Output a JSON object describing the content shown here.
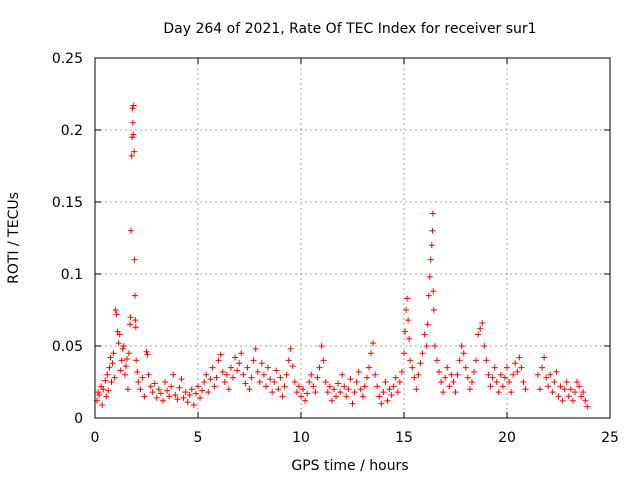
{
  "chart_data": {
    "type": "scatter",
    "title": "Day 264 of 2021, Rate Of TEC Index for receiver sur1",
    "xlabel": "GPS time / hours",
    "ylabel": "ROTI / TECUs",
    "xlim": [
      0,
      25
    ],
    "ylim": [
      0,
      0.25
    ],
    "xticks": [
      0,
      5,
      10,
      15,
      20,
      25
    ],
    "xtick_labels": [
      "0",
      "5",
      "10",
      "15",
      "20",
      "25"
    ],
    "yticks": [
      0,
      0.05,
      0.1,
      0.15,
      0.2,
      0.25
    ],
    "ytick_labels": [
      "0",
      "0.05",
      "0.1",
      "0.15",
      "0.2",
      "0.25"
    ],
    "grid": true,
    "marker": "+",
    "color": "#ff0000",
    "series": [
      {
        "name": "ROTI",
        "points": [
          [
            0.1,
            0.012
          ],
          [
            0.15,
            0.018
          ],
          [
            0.2,
            0.016
          ],
          [
            0.3,
            0.022
          ],
          [
            0.35,
            0.009
          ],
          [
            0.4,
            0.02
          ],
          [
            0.5,
            0.026
          ],
          [
            0.55,
            0.015
          ],
          [
            0.6,
            0.03
          ],
          [
            0.65,
            0.019
          ],
          [
            0.7,
            0.035
          ],
          [
            0.75,
            0.042
          ],
          [
            0.8,
            0.025
          ],
          [
            0.85,
            0.038
          ],
          [
            0.9,
            0.045
          ],
          [
            0.95,
            0.028
          ],
          [
            1.0,
            0.075
          ],
          [
            1.05,
            0.072
          ],
          [
            1.1,
            0.06
          ],
          [
            1.15,
            0.052
          ],
          [
            1.2,
            0.058
          ],
          [
            1.25,
            0.033
          ],
          [
            1.3,
            0.04
          ],
          [
            1.35,
            0.048
          ],
          [
            1.4,
            0.05
          ],
          [
            1.45,
            0.03
          ],
          [
            1.5,
            0.036
          ],
          [
            1.55,
            0.041
          ],
          [
            1.6,
            0.02
          ],
          [
            1.65,
            0.045
          ],
          [
            1.7,
            0.065
          ],
          [
            1.72,
            0.07
          ],
          [
            1.75,
            0.13
          ],
          [
            1.78,
            0.182
          ],
          [
            1.8,
            0.195
          ],
          [
            1.82,
            0.215
          ],
          [
            1.84,
            0.205
          ],
          [
            1.86,
            0.197
          ],
          [
            1.88,
            0.217
          ],
          [
            1.9,
            0.185
          ],
          [
            1.92,
            0.11
          ],
          [
            1.94,
            0.085
          ],
          [
            1.96,
            0.068
          ],
          [
            1.98,
            0.063
          ],
          [
            2.0,
            0.04
          ],
          [
            2.05,
            0.032
          ],
          [
            2.1,
            0.025
          ],
          [
            2.2,
            0.02
          ],
          [
            2.3,
            0.028
          ],
          [
            2.4,
            0.015
          ],
          [
            2.5,
            0.046
          ],
          [
            2.55,
            0.044
          ],
          [
            2.6,
            0.03
          ],
          [
            2.7,
            0.022
          ],
          [
            2.8,
            0.018
          ],
          [
            2.9,
            0.024
          ],
          [
            3.0,
            0.014
          ],
          [
            3.1,
            0.02
          ],
          [
            3.2,
            0.017
          ],
          [
            3.3,
            0.012
          ],
          [
            3.4,
            0.025
          ],
          [
            3.5,
            0.019
          ],
          [
            3.6,
            0.015
          ],
          [
            3.7,
            0.022
          ],
          [
            3.8,
            0.03
          ],
          [
            3.9,
            0.016
          ],
          [
            4.0,
            0.013
          ],
          [
            4.1,
            0.021
          ],
          [
            4.2,
            0.027
          ],
          [
            4.3,
            0.014
          ],
          [
            4.4,
            0.018
          ],
          [
            4.5,
            0.011
          ],
          [
            4.6,
            0.016
          ],
          [
            4.7,
            0.02
          ],
          [
            4.8,
            0.009
          ],
          [
            4.9,
            0.017
          ],
          [
            5.0,
            0.022
          ],
          [
            5.1,
            0.014
          ],
          [
            5.2,
            0.019
          ],
          [
            5.3,
            0.025
          ],
          [
            5.4,
            0.03
          ],
          [
            5.5,
            0.018
          ],
          [
            5.6,
            0.027
          ],
          [
            5.7,
            0.035
          ],
          [
            5.8,
            0.022
          ],
          [
            5.9,
            0.028
          ],
          [
            6.0,
            0.04
          ],
          [
            6.1,
            0.044
          ],
          [
            6.2,
            0.032
          ],
          [
            6.3,
            0.025
          ],
          [
            6.4,
            0.03
          ],
          [
            6.5,
            0.02
          ],
          [
            6.6,
            0.035
          ],
          [
            6.7,
            0.028
          ],
          [
            6.8,
            0.042
          ],
          [
            6.9,
            0.033
          ],
          [
            7.0,
            0.038
          ],
          [
            7.1,
            0.045
          ],
          [
            7.2,
            0.03
          ],
          [
            7.3,
            0.024
          ],
          [
            7.4,
            0.035
          ],
          [
            7.5,
            0.02
          ],
          [
            7.6,
            0.028
          ],
          [
            7.7,
            0.04
          ],
          [
            7.8,
            0.048
          ],
          [
            7.9,
            0.032
          ],
          [
            8.0,
            0.025
          ],
          [
            8.1,
            0.038
          ],
          [
            8.2,
            0.03
          ],
          [
            8.3,
            0.022
          ],
          [
            8.4,
            0.035
          ],
          [
            8.5,
            0.027
          ],
          [
            8.6,
            0.018
          ],
          [
            8.7,
            0.025
          ],
          [
            8.8,
            0.033
          ],
          [
            8.9,
            0.02
          ],
          [
            9.0,
            0.028
          ],
          [
            9.1,
            0.015
          ],
          [
            9.2,
            0.022
          ],
          [
            9.3,
            0.03
          ],
          [
            9.4,
            0.04
          ],
          [
            9.5,
            0.048
          ],
          [
            9.6,
            0.036
          ],
          [
            9.7,
            0.025
          ],
          [
            9.8,
            0.018
          ],
          [
            9.9,
            0.022
          ],
          [
            10.0,
            0.015
          ],
          [
            10.1,
            0.02
          ],
          [
            10.2,
            0.012
          ],
          [
            10.3,
            0.017
          ],
          [
            10.4,
            0.025
          ],
          [
            10.5,
            0.03
          ],
          [
            10.6,
            0.022
          ],
          [
            10.7,
            0.018
          ],
          [
            10.8,
            0.028
          ],
          [
            10.9,
            0.035
          ],
          [
            11.0,
            0.05
          ],
          [
            11.1,
            0.04
          ],
          [
            11.2,
            0.025
          ],
          [
            11.3,
            0.018
          ],
          [
            11.4,
            0.022
          ],
          [
            11.5,
            0.012
          ],
          [
            11.6,
            0.02
          ],
          [
            11.7,
            0.015
          ],
          [
            11.8,
            0.024
          ],
          [
            11.9,
            0.018
          ],
          [
            12.0,
            0.03
          ],
          [
            12.1,
            0.022
          ],
          [
            12.2,
            0.015
          ],
          [
            12.3,
            0.02
          ],
          [
            12.4,
            0.027
          ],
          [
            12.5,
            0.01
          ],
          [
            12.6,
            0.018
          ],
          [
            12.7,
            0.025
          ],
          [
            12.8,
            0.032
          ],
          [
            12.9,
            0.02
          ],
          [
            13.0,
            0.015
          ],
          [
            13.1,
            0.022
          ],
          [
            13.2,
            0.028
          ],
          [
            13.3,
            0.035
          ],
          [
            13.4,
            0.045
          ],
          [
            13.5,
            0.052
          ],
          [
            13.6,
            0.03
          ],
          [
            13.7,
            0.022
          ],
          [
            13.8,
            0.015
          ],
          [
            13.9,
            0.01
          ],
          [
            14.0,
            0.018
          ],
          [
            14.1,
            0.025
          ],
          [
            14.2,
            0.012
          ],
          [
            14.3,
            0.02
          ],
          [
            14.4,
            0.016
          ],
          [
            14.5,
            0.022
          ],
          [
            14.6,
            0.028
          ],
          [
            14.7,
            0.018
          ],
          [
            14.8,
            0.025
          ],
          [
            14.9,
            0.032
          ],
          [
            15.0,
            0.045
          ],
          [
            15.05,
            0.06
          ],
          [
            15.1,
            0.075
          ],
          [
            15.15,
            0.083
          ],
          [
            15.2,
            0.068
          ],
          [
            15.25,
            0.055
          ],
          [
            15.3,
            0.04
          ],
          [
            15.4,
            0.035
          ],
          [
            15.5,
            0.028
          ],
          [
            15.6,
            0.02
          ],
          [
            15.7,
            0.03
          ],
          [
            15.8,
            0.038
          ],
          [
            15.9,
            0.045
          ],
          [
            16.0,
            0.058
          ],
          [
            16.1,
            0.05
          ],
          [
            16.15,
            0.065
          ],
          [
            16.2,
            0.085
          ],
          [
            16.25,
            0.098
          ],
          [
            16.3,
            0.11
          ],
          [
            16.35,
            0.12
          ],
          [
            16.38,
            0.13
          ],
          [
            16.4,
            0.142
          ],
          [
            16.42,
            0.088
          ],
          [
            16.45,
            0.075
          ],
          [
            16.5,
            0.05
          ],
          [
            16.6,
            0.04
          ],
          [
            16.7,
            0.032
          ],
          [
            16.8,
            0.025
          ],
          [
            16.9,
            0.018
          ],
          [
            17.0,
            0.028
          ],
          [
            17.1,
            0.035
          ],
          [
            17.2,
            0.022
          ],
          [
            17.3,
            0.03
          ],
          [
            17.4,
            0.025
          ],
          [
            17.5,
            0.018
          ],
          [
            17.6,
            0.03
          ],
          [
            17.7,
            0.04
          ],
          [
            17.8,
            0.05
          ],
          [
            17.9,
            0.045
          ],
          [
            18.0,
            0.035
          ],
          [
            18.1,
            0.028
          ],
          [
            18.2,
            0.02
          ],
          [
            18.3,
            0.025
          ],
          [
            18.4,
            0.032
          ],
          [
            18.5,
            0.04
          ],
          [
            18.6,
            0.058
          ],
          [
            18.7,
            0.062
          ],
          [
            18.8,
            0.066
          ],
          [
            18.9,
            0.05
          ],
          [
            19.0,
            0.04
          ],
          [
            19.1,
            0.03
          ],
          [
            19.2,
            0.022
          ],
          [
            19.3,
            0.028
          ],
          [
            19.4,
            0.035
          ],
          [
            19.5,
            0.025
          ],
          [
            19.6,
            0.018
          ],
          [
            19.7,
            0.03
          ],
          [
            19.8,
            0.022
          ],
          [
            19.9,
            0.028
          ],
          [
            20.0,
            0.035
          ],
          [
            20.1,
            0.025
          ],
          [
            20.2,
            0.018
          ],
          [
            20.3,
            0.03
          ],
          [
            20.4,
            0.038
          ],
          [
            20.5,
            0.032
          ],
          [
            20.6,
            0.042
          ],
          [
            20.7,
            0.035
          ],
          [
            20.8,
            0.025
          ],
          [
            20.9,
            0.02
          ],
          [
            21.5,
            0.03
          ],
          [
            21.6,
            0.02
          ],
          [
            21.7,
            0.035
          ],
          [
            21.8,
            0.042
          ],
          [
            21.9,
            0.028
          ],
          [
            22.0,
            0.022
          ],
          [
            22.1,
            0.03
          ],
          [
            22.2,
            0.018
          ],
          [
            22.3,
            0.025
          ],
          [
            22.4,
            0.032
          ],
          [
            22.5,
            0.015
          ],
          [
            22.6,
            0.022
          ],
          [
            22.7,
            0.012
          ],
          [
            22.8,
            0.02
          ],
          [
            22.9,
            0.025
          ],
          [
            23.0,
            0.015
          ],
          [
            23.1,
            0.02
          ],
          [
            23.2,
            0.012
          ],
          [
            23.3,
            0.018
          ],
          [
            23.4,
            0.025
          ],
          [
            23.5,
            0.022
          ],
          [
            23.6,
            0.015
          ],
          [
            23.7,
            0.018
          ],
          [
            23.8,
            0.012
          ],
          [
            23.9,
            0.008
          ]
        ]
      }
    ]
  }
}
